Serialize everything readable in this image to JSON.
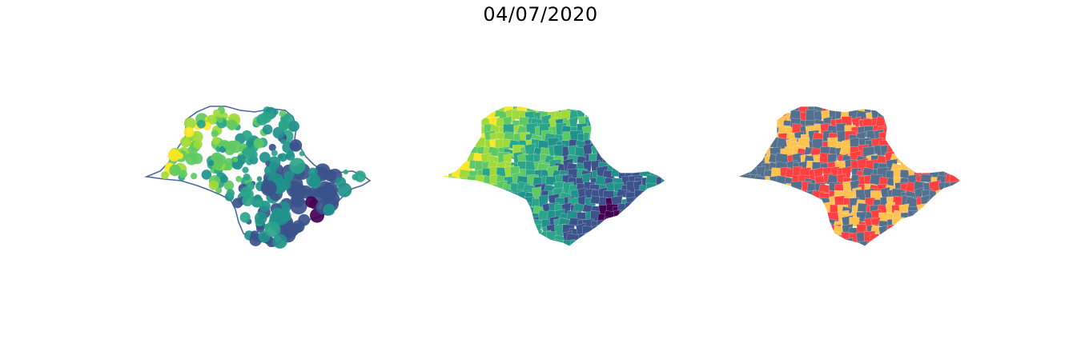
{
  "title": "04/07/2020",
  "panels": [
    {
      "kind": "bubble-map",
      "outline_color": "#4a6a9a"
    },
    {
      "kind": "choropleth-continuous",
      "outline_color": "#5a8a5a"
    },
    {
      "kind": "choropleth-categorical",
      "outline_color": "#53708e"
    }
  ],
  "palette": {
    "viridis": [
      "#440154",
      "#3b528b",
      "#21918c",
      "#2aa58a",
      "#5ec962",
      "#a0da39",
      "#fde725"
    ],
    "categorical": [
      "#ff4040",
      "#ffc34d",
      "#53708e"
    ]
  }
}
